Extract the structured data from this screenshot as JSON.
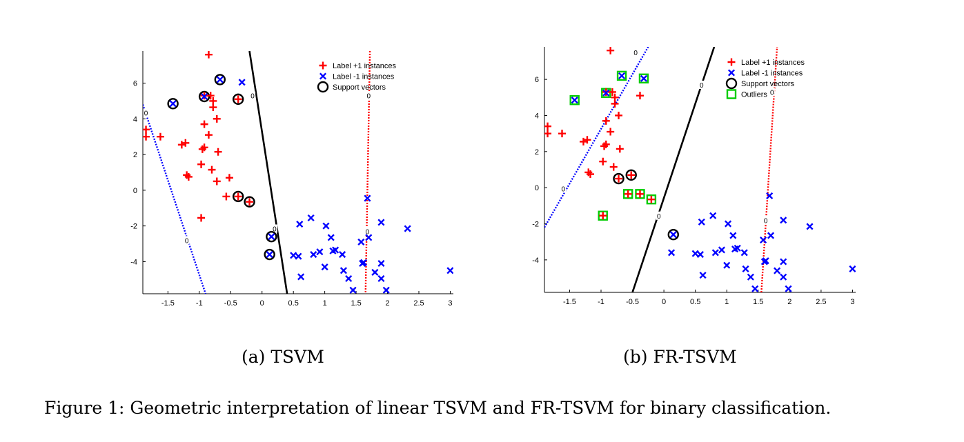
{
  "figure_caption": "Figure 1: Geometric interpretation of linear TSVM and FR-TSVM for binary classification.",
  "colors": {
    "plus": "#ff0000",
    "minus": "#0000ff",
    "support": "#000000",
    "outlier": "#00cc00",
    "axis": "#000000"
  },
  "chart_data": [
    {
      "type": "scatter",
      "title": "",
      "subcaption": "(a) TSVM",
      "xlim": [
        -1.9,
        3.05
      ],
      "ylim": [
        -5.8,
        7.8
      ],
      "xticks": [
        -1.5,
        -1,
        -0.5,
        0,
        0.5,
        1,
        1.5,
        2,
        2.5,
        3
      ],
      "yticks": [
        -4,
        -2,
        0,
        2,
        4,
        6
      ],
      "xtick_labels": [
        "-1.5",
        "-1",
        "-0.5",
        "0",
        "0.5",
        "1",
        "1.5",
        "2",
        "2.5",
        "3"
      ],
      "ytick_labels": [
        "-4",
        "-2",
        "0",
        "2",
        "4",
        "6"
      ],
      "legend": [
        {
          "marker": "plus",
          "label": "Label +1 instances"
        },
        {
          "marker": "x",
          "label": "Label -1 instances"
        },
        {
          "marker": "circle",
          "label": "Support vectors"
        }
      ],
      "legend_position": "top-right",
      "series": [
        {
          "name": "Label +1 instances",
          "marker": "plus",
          "points": [
            [
              -0.85,
              7.6
            ],
            [
              -1.85,
              3.4
            ],
            [
              -1.85,
              3.0
            ],
            [
              -1.62,
              3.0
            ],
            [
              -1.28,
              2.55
            ],
            [
              -1.22,
              2.65
            ],
            [
              -0.95,
              2.3
            ],
            [
              -0.92,
              2.4
            ],
            [
              -0.92,
              3.7
            ],
            [
              -0.85,
              3.1
            ],
            [
              -0.78,
              5.0
            ],
            [
              -0.78,
              4.65
            ],
            [
              -0.82,
              5.3
            ],
            [
              -0.72,
              4.0
            ],
            [
              -0.7,
              2.15
            ],
            [
              -0.97,
              1.45
            ],
            [
              -0.8,
              1.15
            ],
            [
              -1.2,
              0.85
            ],
            [
              -1.17,
              0.75
            ],
            [
              -0.72,
              0.5
            ],
            [
              -0.52,
              0.7
            ],
            [
              -0.57,
              -0.35
            ],
            [
              -0.97,
              -1.55
            ],
            [
              -0.38,
              -0.35
            ],
            [
              -0.2,
              -0.65
            ],
            [
              -0.38,
              5.1
            ],
            [
              -0.92,
              5.3
            ]
          ]
        },
        {
          "name": "Label -1 instances",
          "marker": "x",
          "points": [
            [
              -1.42,
              4.85
            ],
            [
              -0.92,
              5.25
            ],
            [
              -0.67,
              6.2
            ],
            [
              -0.32,
              6.05
            ],
            [
              1.68,
              -0.45
            ],
            [
              0.6,
              -1.9
            ],
            [
              0.78,
              -1.55
            ],
            [
              1.02,
              -2.0
            ],
            [
              1.1,
              -2.65
            ],
            [
              1.58,
              -2.9
            ],
            [
              1.7,
              -2.65
            ],
            [
              1.9,
              -1.8
            ],
            [
              2.32,
              -2.15
            ],
            [
              0.15,
              -2.6
            ],
            [
              0.12,
              -3.6
            ],
            [
              0.5,
              -3.65
            ],
            [
              0.58,
              -3.7
            ],
            [
              0.62,
              -4.85
            ],
            [
              0.82,
              -3.6
            ],
            [
              0.92,
              -3.45
            ],
            [
              1.0,
              -4.3
            ],
            [
              1.13,
              -3.4
            ],
            [
              1.17,
              -3.35
            ],
            [
              1.28,
              -3.6
            ],
            [
              1.3,
              -4.5
            ],
            [
              1.38,
              -4.95
            ],
            [
              1.6,
              -4.1
            ],
            [
              1.62,
              -4.05
            ],
            [
              1.8,
              -4.6
            ],
            [
              1.9,
              -4.1
            ],
            [
              1.9,
              -4.95
            ],
            [
              1.98,
              -5.6
            ],
            [
              1.45,
              -5.6
            ],
            [
              3.0,
              -4.5
            ]
          ]
        },
        {
          "name": "Support vectors",
          "marker": "circle",
          "points": [
            [
              -1.42,
              4.85
            ],
            [
              -0.92,
              5.25
            ],
            [
              -0.67,
              6.2
            ],
            [
              -0.38,
              5.1
            ],
            [
              -0.38,
              -0.35
            ],
            [
              -0.2,
              -0.65
            ],
            [
              0.15,
              -2.6
            ],
            [
              0.12,
              -3.6
            ]
          ]
        }
      ],
      "lines": [
        {
          "name": "separating hyperplane",
          "style": "solid",
          "color": "#000000",
          "label": "0",
          "label_at": [
            -0.15,
            5.3
          ],
          "points": [
            [
              -0.2,
              7.8
            ],
            [
              0.4,
              -5.8
            ]
          ]
        },
        {
          "name": "label +1 hyperplane",
          "style": "dotted",
          "color": "#0000ff",
          "label": "0",
          "label_at": [
            -1.2,
            -2.8
          ],
          "points": [
            [
              -1.9,
              4.8
            ],
            [
              -0.9,
              -5.8
            ]
          ]
        },
        {
          "name": "label -1 hyperplane",
          "style": "dotted",
          "color": "#ff0000",
          "label": "0",
          "label_at": [
            1.7,
            5.3
          ],
          "points": [
            [
              1.72,
              7.8
            ],
            [
              1.65,
              -5.8
            ]
          ]
        }
      ],
      "contour_labels": [
        {
          "text": "0",
          "at": [
            0.2,
            -2.15
          ]
        },
        {
          "text": "0",
          "at": [
            -1.85,
            4.35
          ]
        },
        {
          "text": "0",
          "at": [
            1.68,
            -2.3
          ]
        }
      ]
    },
    {
      "type": "scatter",
      "title": "",
      "subcaption": "(b) FR-TSVM",
      "xlim": [
        -1.9,
        3.05
      ],
      "ylim": [
        -5.8,
        7.8
      ],
      "xticks": [
        -1.5,
        -1,
        -0.5,
        0,
        0.5,
        1,
        1.5,
        2,
        2.5,
        3
      ],
      "yticks": [
        -4,
        -2,
        0,
        2,
        4,
        6
      ],
      "xtick_labels": [
        "-1.5",
        "-1",
        "-0.5",
        "0",
        "0.5",
        "1",
        "1.5",
        "2",
        "2.5",
        "3"
      ],
      "ytick_labels": [
        "-4",
        "-2",
        "0",
        "2",
        "4",
        "6"
      ],
      "legend": [
        {
          "marker": "plus",
          "label": "Label +1 instances"
        },
        {
          "marker": "x",
          "label": "Label -1 instances"
        },
        {
          "marker": "circle",
          "label": "Support vectors"
        },
        {
          "marker": "square",
          "label": "Outliers"
        }
      ],
      "legend_position": "top-right",
      "series": [
        {
          "name": "Label +1 instances",
          "marker": "plus",
          "points": [
            [
              -0.85,
              7.6
            ],
            [
              -1.85,
              3.4
            ],
            [
              -1.85,
              3.0
            ],
            [
              -1.62,
              3.0
            ],
            [
              -1.28,
              2.55
            ],
            [
              -1.22,
              2.65
            ],
            [
              -0.95,
              2.3
            ],
            [
              -0.92,
              2.4
            ],
            [
              -0.92,
              3.7
            ],
            [
              -0.85,
              3.1
            ],
            [
              -0.78,
              5.0
            ],
            [
              -0.78,
              4.65
            ],
            [
              -0.82,
              5.3
            ],
            [
              -0.72,
              4.0
            ],
            [
              -0.7,
              2.15
            ],
            [
              -0.97,
              1.45
            ],
            [
              -0.8,
              1.15
            ],
            [
              -1.2,
              0.85
            ],
            [
              -1.17,
              0.75
            ],
            [
              -0.72,
              0.5
            ],
            [
              -0.52,
              0.7
            ],
            [
              -0.57,
              -0.35
            ],
            [
              -0.97,
              -1.55
            ],
            [
              -0.38,
              -0.35
            ],
            [
              -0.2,
              -0.65
            ],
            [
              -0.38,
              5.1
            ],
            [
              -0.92,
              5.3
            ]
          ]
        },
        {
          "name": "Label -1 instances",
          "marker": "x",
          "points": [
            [
              -1.42,
              4.85
            ],
            [
              -0.92,
              5.25
            ],
            [
              -0.67,
              6.2
            ],
            [
              -0.32,
              6.05
            ],
            [
              1.68,
              -0.45
            ],
            [
              0.6,
              -1.9
            ],
            [
              0.78,
              -1.55
            ],
            [
              1.02,
              -2.0
            ],
            [
              1.1,
              -2.65
            ],
            [
              1.58,
              -2.9
            ],
            [
              1.7,
              -2.65
            ],
            [
              1.9,
              -1.8
            ],
            [
              2.32,
              -2.15
            ],
            [
              0.15,
              -2.6
            ],
            [
              0.12,
              -3.6
            ],
            [
              0.5,
              -3.65
            ],
            [
              0.58,
              -3.7
            ],
            [
              0.62,
              -4.85
            ],
            [
              0.82,
              -3.6
            ],
            [
              0.92,
              -3.45
            ],
            [
              1.0,
              -4.3
            ],
            [
              1.13,
              -3.4
            ],
            [
              1.17,
              -3.35
            ],
            [
              1.28,
              -3.6
            ],
            [
              1.3,
              -4.5
            ],
            [
              1.38,
              -4.95
            ],
            [
              1.6,
              -4.1
            ],
            [
              1.62,
              -4.05
            ],
            [
              1.8,
              -4.6
            ],
            [
              1.9,
              -4.1
            ],
            [
              1.9,
              -4.95
            ],
            [
              1.98,
              -5.6
            ],
            [
              1.45,
              -5.6
            ],
            [
              3.0,
              -4.5
            ]
          ]
        },
        {
          "name": "Support vectors",
          "marker": "circle",
          "points": [
            [
              -0.72,
              0.5
            ],
            [
              -0.52,
              0.7
            ],
            [
              0.15,
              -2.6
            ]
          ]
        },
        {
          "name": "Outliers",
          "marker": "square",
          "points": [
            [
              -1.42,
              4.85
            ],
            [
              -0.92,
              5.25
            ],
            [
              -0.67,
              6.2
            ],
            [
              -0.32,
              6.05
            ],
            [
              -0.57,
              -0.35
            ],
            [
              -0.38,
              -0.35
            ],
            [
              -0.2,
              -0.65
            ],
            [
              -0.97,
              -1.55
            ]
          ]
        }
      ],
      "lines": [
        {
          "name": "separating hyperplane",
          "style": "solid",
          "color": "#000000",
          "label": "0",
          "label_at": [
            0.6,
            5.7
          ],
          "points": [
            [
              -0.5,
              -5.8
            ],
            [
              0.8,
              7.8
            ]
          ]
        },
        {
          "name": "label +1 hyperplane",
          "style": "dotted",
          "color": "#0000ff",
          "label": "0",
          "label_at": [
            -1.6,
            -0.05
          ],
          "points": [
            [
              -1.9,
              -2.2
            ],
            [
              -0.25,
              7.8
            ]
          ]
        },
        {
          "name": "label -1 hyperplane",
          "style": "dotted",
          "color": "#ff0000",
          "label": "0",
          "label_at": [
            1.62,
            -1.8
          ],
          "points": [
            [
              1.55,
              -5.8
            ],
            [
              1.8,
              7.8
            ]
          ]
        }
      ],
      "contour_labels": [
        {
          "text": "0",
          "at": [
            -0.45,
            7.5
          ]
        },
        {
          "text": "0",
          "at": [
            -0.08,
            -1.55
          ]
        },
        {
          "text": "0",
          "at": [
            1.72,
            5.3
          ]
        }
      ]
    }
  ]
}
